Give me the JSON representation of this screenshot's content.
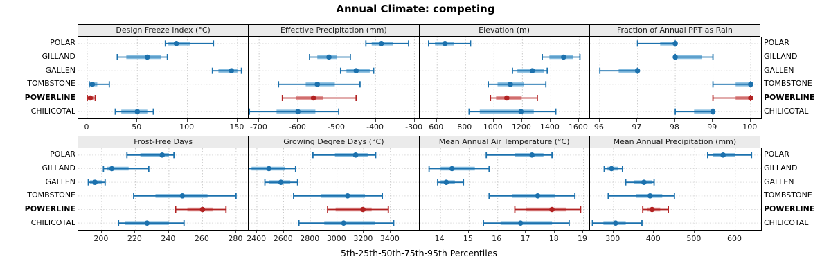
{
  "title": "Annual Climate: competing",
  "caption": "5th-25th-50th-75th-95th Percentiles",
  "sites": [
    "POLAR",
    "GILLAND",
    "GALLEN",
    "TOMBSTONE",
    "POWERLINE",
    "CHILICOTAL"
  ],
  "highlight_site": "POWERLINE",
  "colors": {
    "series_normal": "#1c71ad",
    "series_normal_band": "#85bcdf",
    "series_highlight": "#b22222",
    "series_highlight_band": "#e39c9c",
    "strip_bg": "#ebebeb",
    "panel_border": "#000000",
    "gridline": "#c9c9c9",
    "rowline": "#d9d9d9"
  },
  "chart_data": {
    "type": "dot-whisker-trellis",
    "title": "Annual Climate: competing",
    "xlabel": "5th-25th-50th-75th-95th Percentiles",
    "legend_position": "none",
    "grid": "dotted",
    "rows": 2,
    "cols": 4,
    "categories": [
      "POLAR",
      "GILLAND",
      "GALLEN",
      "TOMBSTONE",
      "POWERLINE",
      "CHILICOTAL"
    ],
    "percentile_order": [
      "p5",
      "p25",
      "p50",
      "p75",
      "p95"
    ],
    "panels": [
      {
        "title": "Design Freeze Index (°C)",
        "row": 0,
        "col": 0,
        "xlim": [
          -9,
          162
        ],
        "ticks": [
          0,
          50,
          100,
          150
        ],
        "series": [
          {
            "site": "POLAR",
            "values": [
              78,
              81,
              89,
              103,
              126
            ]
          },
          {
            "site": "GILLAND",
            "values": [
              30,
              39,
              60,
              74,
              80
            ]
          },
          {
            "site": "GALLEN",
            "values": [
              125,
              131,
              144,
              150,
              154
            ]
          },
          {
            "site": "TOMBSTONE",
            "values": [
              2,
              3,
              5,
              10,
              22
            ]
          },
          {
            "site": "POWERLINE",
            "values": [
              0,
              1,
              3,
              7,
              8
            ]
          },
          {
            "site": "CHILICOTAL",
            "values": [
              28,
              34,
              50,
              60,
              66
            ]
          }
        ]
      },
      {
        "title": "Effective Precipitation (mm)",
        "row": 0,
        "col": 1,
        "xlim": [
          -727,
          -286
        ],
        "ticks": [
          -700,
          -600,
          -500,
          -400,
          -300
        ],
        "series": [
          {
            "site": "POLAR",
            "values": [
              -425,
              -410,
              -385,
              -355,
              -315
            ]
          },
          {
            "site": "GILLAND",
            "values": [
              -570,
              -550,
              -520,
              -500,
              -465
            ]
          },
          {
            "site": "GALLEN",
            "values": [
              -490,
              -475,
              -450,
              -415,
              -405
            ]
          },
          {
            "site": "TOMBSTONE",
            "values": [
              -650,
              -580,
              -550,
              -505,
              -440
            ]
          },
          {
            "site": "POWERLINE",
            "values": [
              -640,
              -605,
              -560,
              -535,
              -450
            ]
          },
          {
            "site": "CHILICOTAL",
            "values": [
              -725,
              -655,
              -600,
              -555,
              -495
            ]
          }
        ]
      },
      {
        "title": "Elevation (m)",
        "row": 0,
        "col": 2,
        "xlim": [
          477,
          1682
        ],
        "ticks": [
          600,
          800,
          1000,
          1200,
          1400,
          1600
        ],
        "series": [
          {
            "site": "POLAR",
            "values": [
              540,
              585,
              655,
              720,
              835
            ]
          },
          {
            "site": "GILLAND",
            "values": [
              1340,
              1390,
              1490,
              1555,
              1605
            ]
          },
          {
            "site": "GALLEN",
            "values": [
              1130,
              1165,
              1270,
              1350,
              1375
            ]
          },
          {
            "site": "TOMBSTONE",
            "values": [
              960,
              1025,
              1115,
              1210,
              1365
            ]
          },
          {
            "site": "POWERLINE",
            "values": [
              975,
              1015,
              1090,
              1195,
              1305
            ]
          },
          {
            "site": "CHILICOTAL",
            "values": [
              825,
              900,
              1190,
              1280,
              1435
            ]
          }
        ]
      },
      {
        "title": "Fraction of Annual PPT as Rain",
        "row": 0,
        "col": 3,
        "xlim": [
          95.74,
          100.28
        ],
        "ticks": [
          96,
          97,
          98,
          99,
          100
        ],
        "series": [
          {
            "site": "POLAR",
            "values": [
              97,
              97.6,
              98,
              98,
              98
            ]
          },
          {
            "site": "GILLAND",
            "values": [
              98,
              98,
              98,
              98.7,
              99
            ]
          },
          {
            "site": "GALLEN",
            "values": [
              96,
              96.5,
              97,
              97,
              97
            ]
          },
          {
            "site": "TOMBSTONE",
            "values": [
              99,
              99.6,
              100,
              100,
              100
            ]
          },
          {
            "site": "POWERLINE",
            "values": [
              99,
              99.6,
              100,
              100,
              100
            ]
          },
          {
            "site": "CHILICOTAL",
            "values": [
              98,
              98.5,
              99,
              99,
              99
            ]
          }
        ]
      },
      {
        "title": "Frost-Free Days",
        "row": 1,
        "col": 0,
        "xlim": [
          186,
          288
        ],
        "ticks": [
          200,
          220,
          240,
          260,
          280
        ],
        "series": [
          {
            "site": "POLAR",
            "values": [
              215,
              223,
              236,
              240,
              243
            ]
          },
          {
            "site": "GILLAND",
            "values": [
              201,
              203,
              206,
              216,
              228
            ]
          },
          {
            "site": "GALLEN",
            "values": [
              192,
              193,
              196,
              200,
              202
            ]
          },
          {
            "site": "TOMBSTONE",
            "values": [
              219,
              232,
              248,
              263,
              280
            ]
          },
          {
            "site": "POWERLINE",
            "values": [
              244,
              251,
              260,
              266,
              274
            ]
          },
          {
            "site": "CHILICOTAL",
            "values": [
              210,
              214,
              227,
              240,
              249
            ]
          }
        ]
      },
      {
        "title": "Growing Degree Days (°C)",
        "row": 1,
        "col": 1,
        "xlim": [
          2338,
          3621
        ],
        "ticks": [
          2400,
          2600,
          2800,
          3000,
          3200,
          3400
        ],
        "series": [
          {
            "site": "POLAR",
            "values": [
              2820,
              2985,
              3140,
              3230,
              3290
            ]
          },
          {
            "site": "GILLAND",
            "values": [
              2290,
              2360,
              2490,
              2610,
              2690
            ]
          },
          {
            "site": "GALLEN",
            "values": [
              2460,
              2490,
              2580,
              2650,
              2705
            ]
          },
          {
            "site": "TOMBSTONE",
            "values": [
              2675,
              2880,
              3080,
              3210,
              3340
            ]
          },
          {
            "site": "POWERLINE",
            "values": [
              2930,
              2990,
              3195,
              3260,
              3385
            ]
          },
          {
            "site": "CHILICOTAL",
            "values": [
              2715,
              2905,
              3050,
              3285,
              3425
            ]
          }
        ]
      },
      {
        "title": "Mean Annual Air Temperature (°C)",
        "row": 1,
        "col": 2,
        "xlim": [
          13.27,
          19.26
        ],
        "ticks": [
          14,
          15,
          16,
          17,
          18,
          19
        ],
        "series": [
          {
            "site": "POLAR",
            "values": [
              15.6,
              16.6,
              17.2,
              17.6,
              17.9
            ]
          },
          {
            "site": "GILLAND",
            "values": [
              13.6,
              14.0,
              14.4,
              15.2,
              15.7
            ]
          },
          {
            "site": "GALLEN",
            "values": [
              13.9,
              14.0,
              14.2,
              14.5,
              14.8
            ]
          },
          {
            "site": "TOMBSTONE",
            "values": [
              15.7,
              16.5,
              17.4,
              18.0,
              18.7
            ]
          },
          {
            "site": "POWERLINE",
            "values": [
              16.6,
              17.0,
              17.9,
              18.4,
              18.9
            ]
          },
          {
            "site": "CHILICOTAL",
            "values": [
              15.5,
              16.1,
              16.8,
              17.9,
              18.5
            ]
          }
        ]
      },
      {
        "title": "Mean Annual Precipitation (mm)",
        "row": 1,
        "col": 3,
        "xlim": [
          242,
          664
        ],
        "ticks": [
          300,
          400,
          500,
          600
        ],
        "series": [
          {
            "site": "POLAR",
            "values": [
              532,
              545,
              570,
              600,
              640
            ]
          },
          {
            "site": "GILLAND",
            "values": [
              277,
              285,
              295,
              312,
              322
            ]
          },
          {
            "site": "GALLEN",
            "values": [
              330,
              350,
              375,
              395,
              400
            ]
          },
          {
            "site": "TOMBSTONE",
            "values": [
              287,
              355,
              390,
              420,
              450
            ]
          },
          {
            "site": "POWERLINE",
            "values": [
              372,
              383,
              395,
              415,
              435
            ]
          },
          {
            "site": "CHILICOTAL",
            "values": [
              248,
              275,
              305,
              330,
              370
            ]
          }
        ]
      }
    ]
  }
}
